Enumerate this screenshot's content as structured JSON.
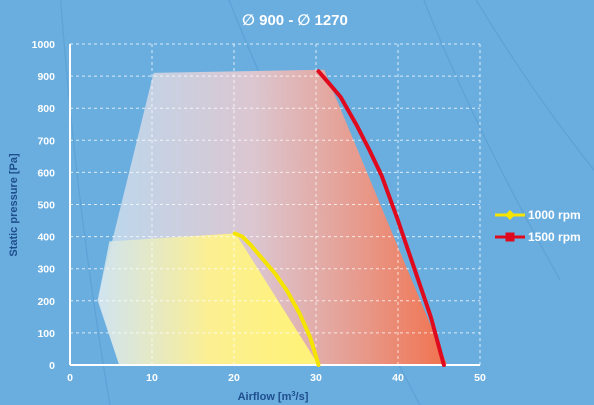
{
  "chart_data": {
    "type": "line",
    "title": "∅ 900 - ∅ 1270",
    "xlabel_main": "Airflow [m",
    "xlabel_sup": "3",
    "xlabel_tail": "/s]",
    "ylabel": "Static pressure [Pa]",
    "xlim": [
      0,
      50
    ],
    "ylim": [
      0,
      1000
    ],
    "x_ticks": [
      0,
      10,
      20,
      30,
      40,
      50
    ],
    "y_ticks": [
      0,
      100,
      200,
      300,
      400,
      500,
      600,
      700,
      800,
      900,
      1000
    ],
    "grid": true,
    "legend_position": "right",
    "series": [
      {
        "name": "1000 rpm",
        "color": "#f5e400",
        "marker": "diamond",
        "x": [
          20.1,
          21.0,
          22.0,
          23.5,
          25.0,
          26.5,
          28.0,
          29.3,
          30.3
        ],
        "y": [
          410,
          400,
          375,
          330,
          285,
          230,
          160,
          85,
          0
        ]
      },
      {
        "name": "1500 rpm",
        "color": "#e00a1e",
        "marker": "square",
        "x": [
          30.3,
          31.5,
          33.0,
          35.0,
          36.5,
          38.0,
          40.0,
          42.0,
          44.0,
          45.6
        ],
        "y": [
          915,
          880,
          835,
          745,
          670,
          590,
          450,
          300,
          150,
          0
        ]
      }
    ],
    "operating_area": {
      "outer": {
        "x": [
          3.4,
          10.2,
          31.0,
          46.0,
          6.0,
          3.3
        ],
        "y": [
          205,
          910,
          920,
          0,
          0,
          205
        ]
      },
      "inner": {
        "x": [
          4.8,
          20.2,
          30.3,
          6.0,
          3.4
        ],
        "y": [
          385,
          410,
          0,
          0,
          205
        ]
      }
    },
    "colors": {
      "background": "#6aaee0",
      "area_cool": "#c9dff0",
      "area_warm": "#f07553",
      "area_yellow": "#fff27a"
    }
  }
}
